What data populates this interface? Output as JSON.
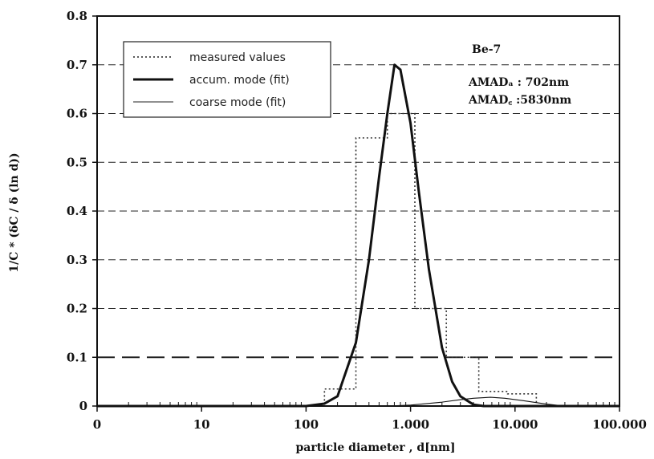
{
  "chart_data": {
    "type": "line",
    "xlabel": "particle diameter , d[nm]",
    "ylabel": "1/C * (δC / δ (ln d))",
    "xscale": "log",
    "xlim": [
      1,
      100000
    ],
    "ylim": [
      0,
      0.8
    ],
    "grid": "horizontal dashed",
    "x_tick_labels": [
      "0",
      "10",
      "100",
      "1.000",
      "10.000",
      "100.000"
    ],
    "y_tick_labels": [
      "0",
      "0.1",
      "0.2",
      "0.3",
      "0.4",
      "0.5",
      "0.6",
      "0.7",
      "0.8"
    ],
    "legend": {
      "position": "top-left",
      "entries": [
        "measured values",
        "accum. mode (fit)",
        "coarse mode (fit)"
      ]
    },
    "annotations": {
      "nuclide": "Be-7",
      "amad_a": "AMADₐ : 702nm",
      "amad_c": "AMAD꜀ :5830nm"
    },
    "series": [
      {
        "name": "measured values",
        "style": "dotted step",
        "x": [
          1,
          150,
          300,
          600,
          1100,
          2200,
          4500,
          8500,
          16000,
          30000,
          100000
        ],
        "y": [
          0,
          0.035,
          0.55,
          0.6,
          0.2,
          0.1,
          0.03,
          0.025,
          0.0,
          0.0,
          0.0
        ]
      },
      {
        "name": "accum. mode (fit)",
        "style": "thick solid",
        "x": [
          1,
          100,
          150,
          200,
          300,
          400,
          500,
          600,
          702,
          800,
          1000,
          1200,
          1500,
          2000,
          2500,
          3000,
          4000,
          5000,
          100000
        ],
        "y": [
          0,
          0.0,
          0.005,
          0.02,
          0.13,
          0.3,
          0.47,
          0.6,
          0.7,
          0.69,
          0.58,
          0.44,
          0.28,
          0.12,
          0.05,
          0.02,
          0.003,
          0.0,
          0.0
        ]
      },
      {
        "name": "coarse mode (fit)",
        "style": "thin solid",
        "x": [
          1,
          600,
          1000,
          2000,
          3000,
          4000,
          5830,
          8000,
          12000,
          20000,
          30000,
          100000
        ],
        "y": [
          0,
          0.0,
          0.002,
          0.008,
          0.013,
          0.016,
          0.018,
          0.016,
          0.011,
          0.004,
          0.0,
          0.0
        ]
      }
    ]
  }
}
